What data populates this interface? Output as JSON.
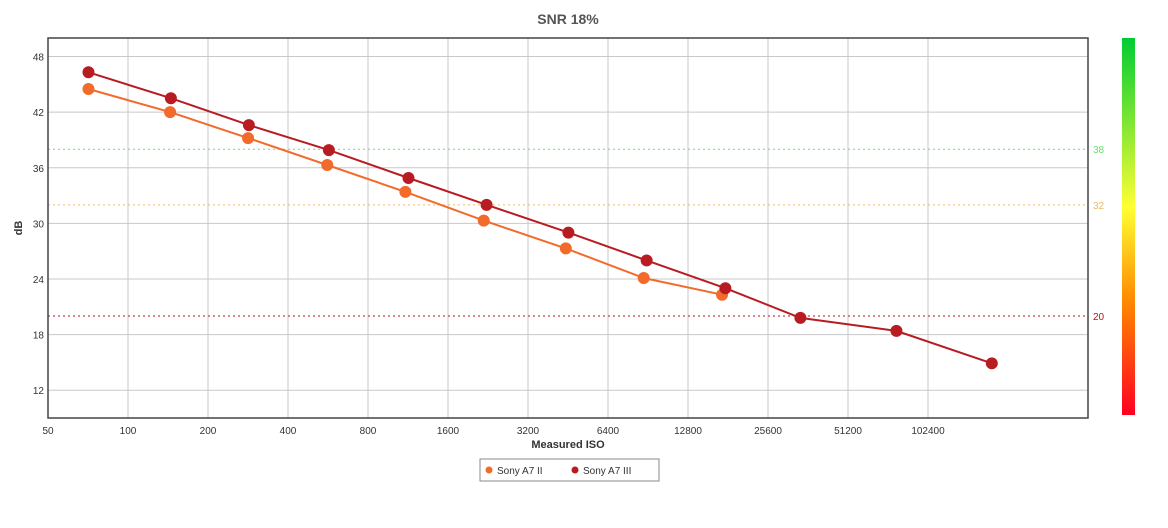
{
  "chart_data": {
    "type": "line",
    "title": "SNR 18%",
    "xlabel": "Measured ISO",
    "ylabel": "dB",
    "x_scale": "log2",
    "xlim": [
      50,
      409600
    ],
    "ylim": [
      9,
      50
    ],
    "x_ticks": [
      50,
      100,
      200,
      400,
      800,
      1600,
      3200,
      6400,
      12800,
      25600,
      51200,
      102400
    ],
    "y_ticks": [
      12,
      18,
      24,
      30,
      36,
      42,
      48
    ],
    "grid": true,
    "legend_position": "bottom",
    "reference_lines": [
      {
        "value": 38,
        "label": "38",
        "color": "#6ddc6d"
      },
      {
        "value": 32,
        "label": "32",
        "color": "#f2b862"
      },
      {
        "value": 20,
        "label": "20",
        "color": "#b4141c"
      }
    ],
    "colorbar": {
      "top_color": "#00cc33",
      "mid_color": "#ffff33",
      "low_color": "#ff8800",
      "bottom_color": "#ff0022"
    },
    "series": [
      {
        "name": "Sony A7 II",
        "color": "#f26b2b",
        "points": [
          {
            "x": 71,
            "y": 44.5
          },
          {
            "x": 144,
            "y": 42.0
          },
          {
            "x": 283,
            "y": 39.2
          },
          {
            "x": 562,
            "y": 36.3
          },
          {
            "x": 1106,
            "y": 33.4
          },
          {
            "x": 2181,
            "y": 30.3
          },
          {
            "x": 4441,
            "y": 27.3
          },
          {
            "x": 8721,
            "y": 24.1
          },
          {
            "x": 17190,
            "y": 22.3
          }
        ]
      },
      {
        "name": "Sony A7 III",
        "color": "#b81c22",
        "points": [
          {
            "x": 71,
            "y": 46.3
          },
          {
            "x": 145,
            "y": 43.5
          },
          {
            "x": 285,
            "y": 40.6
          },
          {
            "x": 570,
            "y": 37.9
          },
          {
            "x": 1136,
            "y": 34.9
          },
          {
            "x": 2235,
            "y": 32.0
          },
          {
            "x": 4542,
            "y": 29.0
          },
          {
            "x": 8945,
            "y": 26.0
          },
          {
            "x": 17696,
            "y": 23.0
          },
          {
            "x": 33900,
            "y": 19.8
          },
          {
            "x": 77900,
            "y": 18.4
          },
          {
            "x": 178000,
            "y": 14.9
          }
        ]
      }
    ]
  }
}
